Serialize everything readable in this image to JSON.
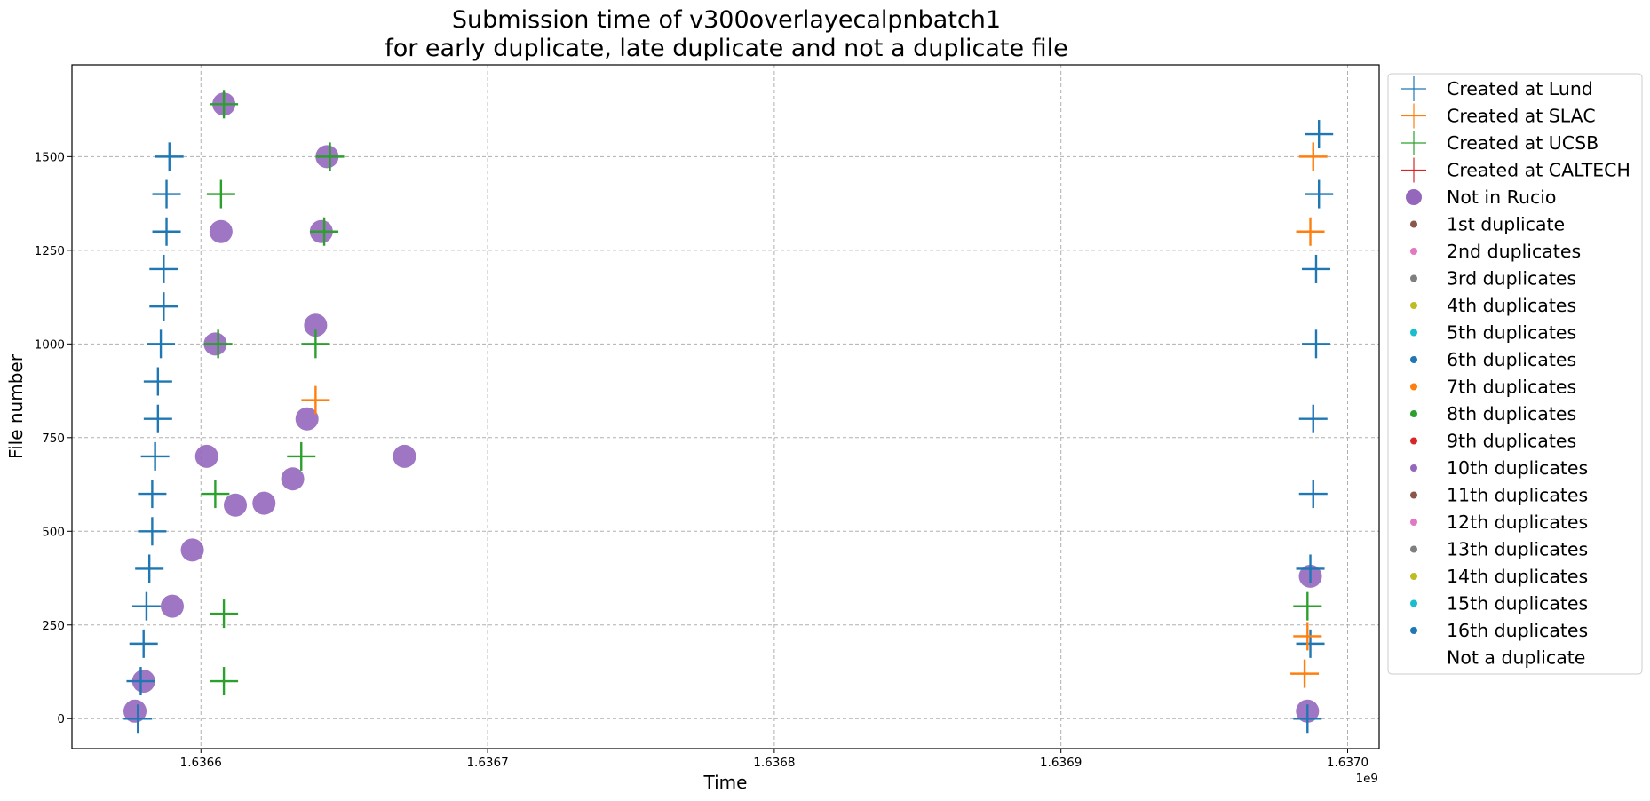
{
  "chart_data": {
    "type": "scatter",
    "title": [
      "Submission time of v300overlayecalpnbatch1",
      "for early duplicate, late duplicate and not a duplicate file"
    ],
    "xlabel": "Time",
    "ylabel": "File number",
    "x_offset_label": "1e9",
    "xlim": [
      1.636555,
      1.637011
    ],
    "ylim": [
      -80,
      1745
    ],
    "x_unit_note": "x values are in units of 1e9 seconds",
    "xticks": [
      1.6366,
      1.6367,
      1.6368,
      1.6369,
      1.637
    ],
    "xtick_labels": [
      "1.6366",
      "1.6367",
      "1.6368",
      "1.6369",
      "1.6370"
    ],
    "yticks": [
      0,
      250,
      500,
      750,
      1000,
      1250,
      1500
    ],
    "ytick_labels": [
      "0",
      "250",
      "500",
      "750",
      "1000",
      "1250",
      "1500"
    ],
    "grid": true,
    "legend_position": "outside-right-top",
    "clusters": [
      {
        "name": "Created at Lund",
        "points": [
          [
            1.636578,
            0
          ],
          [
            1.636579,
            100
          ],
          [
            1.63658,
            200
          ],
          [
            1.636581,
            300
          ],
          [
            1.636582,
            400
          ],
          [
            1.636583,
            500
          ],
          [
            1.636583,
            600
          ],
          [
            1.636584,
            700
          ],
          [
            1.636585,
            800
          ],
          [
            1.636585,
            900
          ],
          [
            1.636586,
            1000
          ],
          [
            1.636587,
            1100
          ],
          [
            1.636587,
            1200
          ],
          [
            1.636588,
            1300
          ],
          [
            1.636588,
            1400
          ],
          [
            1.636589,
            1500
          ],
          [
            1.636986,
            0
          ],
          [
            1.636987,
            200
          ],
          [
            1.636987,
            400
          ],
          [
            1.636988,
            600
          ],
          [
            1.636988,
            800
          ],
          [
            1.636989,
            1000
          ],
          [
            1.636989,
            1200
          ],
          [
            1.63699,
            1400
          ],
          [
            1.63699,
            1560
          ]
        ]
      },
      {
        "name": "Created at SLAC",
        "points": [
          [
            1.636985,
            120
          ],
          [
            1.636986,
            220
          ],
          [
            1.636987,
            1300
          ],
          [
            1.636988,
            1500
          ],
          [
            1.63664,
            850
          ]
        ]
      },
      {
        "name": "Created at UCSB",
        "points": [
          [
            1.636608,
            100
          ],
          [
            1.636608,
            280
          ],
          [
            1.636605,
            600
          ],
          [
            1.636606,
            1000
          ],
          [
            1.636607,
            1400
          ],
          [
            1.636608,
            1640
          ],
          [
            1.636635,
            700
          ],
          [
            1.63664,
            1000
          ],
          [
            1.636643,
            1300
          ],
          [
            1.636645,
            1500
          ],
          [
            1.636986,
            300
          ]
        ]
      },
      {
        "name": "Not in Rucio",
        "points": [
          [
            1.636577,
            20
          ],
          [
            1.63658,
            100
          ],
          [
            1.63659,
            300
          ],
          [
            1.636597,
            450
          ],
          [
            1.636602,
            700
          ],
          [
            1.636605,
            1000
          ],
          [
            1.636607,
            1300
          ],
          [
            1.636608,
            1640
          ],
          [
            1.636612,
            570
          ],
          [
            1.636622,
            575
          ],
          [
            1.636632,
            640
          ],
          [
            1.636637,
            800
          ],
          [
            1.63664,
            1050
          ],
          [
            1.636642,
            1300
          ],
          [
            1.636644,
            1500
          ],
          [
            1.636671,
            700
          ],
          [
            1.636986,
            20
          ],
          [
            1.636987,
            380
          ]
        ]
      }
    ],
    "series_legend": [
      {
        "name": "Created at Lund",
        "color": "#1f77b4",
        "marker": "plus"
      },
      {
        "name": "Created at SLAC",
        "color": "#ff7f0e",
        "marker": "plus"
      },
      {
        "name": "Created at UCSB",
        "color": "#2ca02c",
        "marker": "plus"
      },
      {
        "name": "Created at CALTECH",
        "color": "#d62728",
        "marker": "plus"
      },
      {
        "name": "Not in Rucio",
        "color": "#9467bd",
        "marker": "big-dot"
      },
      {
        "name": "1st duplicate",
        "color": "#8c564b",
        "marker": "dot"
      },
      {
        "name": "2nd duplicates",
        "color": "#e377c2",
        "marker": "dot"
      },
      {
        "name": "3rd duplicates",
        "color": "#7f7f7f",
        "marker": "dot"
      },
      {
        "name": "4th duplicates",
        "color": "#bcbd22",
        "marker": "dot"
      },
      {
        "name": "5th duplicates",
        "color": "#17becf",
        "marker": "dot"
      },
      {
        "name": "6th duplicates",
        "color": "#1f77b4",
        "marker": "dot"
      },
      {
        "name": "7th duplicates",
        "color": "#ff7f0e",
        "marker": "dot"
      },
      {
        "name": "8th duplicates",
        "color": "#2ca02c",
        "marker": "dot"
      },
      {
        "name": "9th duplicates",
        "color": "#d62728",
        "marker": "dot"
      },
      {
        "name": "10th duplicates",
        "color": "#9467bd",
        "marker": "dot"
      },
      {
        "name": "11th duplicates",
        "color": "#8c564b",
        "marker": "dot"
      },
      {
        "name": "12th duplicates",
        "color": "#e377c2",
        "marker": "dot"
      },
      {
        "name": "13th duplicates",
        "color": "#7f7f7f",
        "marker": "dot"
      },
      {
        "name": "14th duplicates",
        "color": "#bcbd22",
        "marker": "dot"
      },
      {
        "name": "15th duplicates",
        "color": "#17becf",
        "marker": "dot"
      },
      {
        "name": "16th duplicates",
        "color": "#1f77b4",
        "marker": "dot"
      },
      {
        "name": "Not a duplicate",
        "color": "#ffffff",
        "marker": "dot"
      }
    ]
  }
}
